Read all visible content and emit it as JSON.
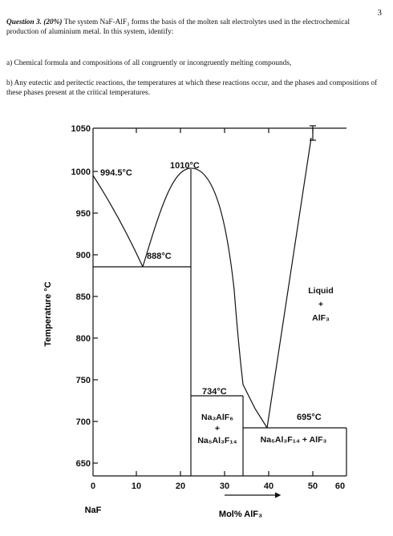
{
  "page_number": "3",
  "question": {
    "title": "Question 3. (20%)",
    "intro": "The system NaF-AlF₃ forms the basis of the molten salt electrolytes used in the electrochemical production of aluminium metal. In this system, identify:",
    "part_a": "a) Chemical formula and compositions of all congruently or incongruently melting compounds,",
    "part_b": "b) Any eutectic and peritectic reactions, the temperatures at which these reactions occur, and the phases and compositions of these phases present at the critical temperatures."
  },
  "diagram": {
    "y_axis_label": "Temperature °C",
    "x_axis_label": "Mol% AlF₃",
    "x_left_label": "NaF",
    "y_ticks": [
      "1050",
      "1000",
      "950",
      "900",
      "850",
      "800",
      "750",
      "700",
      "650"
    ],
    "x_ticks": [
      "0",
      "10",
      "20",
      "30",
      "40",
      "50",
      "60"
    ],
    "annotations": {
      "naf_melting": "994.5°C",
      "cryolite_melting": "1010°C",
      "eutectic_1": "888°C",
      "peritectic": "734°C",
      "eutectic_2": "695°C"
    },
    "regions": {
      "liquid": "Liquid",
      "plus": "+",
      "alf3": "AlF₃",
      "na3alf6": "Na₃AlF₆",
      "na5al3f14": "Na₅Al₃F₁₄",
      "na5_plus_alf3": "Na₅Al₃F₁₄ + AlF₃"
    }
  }
}
